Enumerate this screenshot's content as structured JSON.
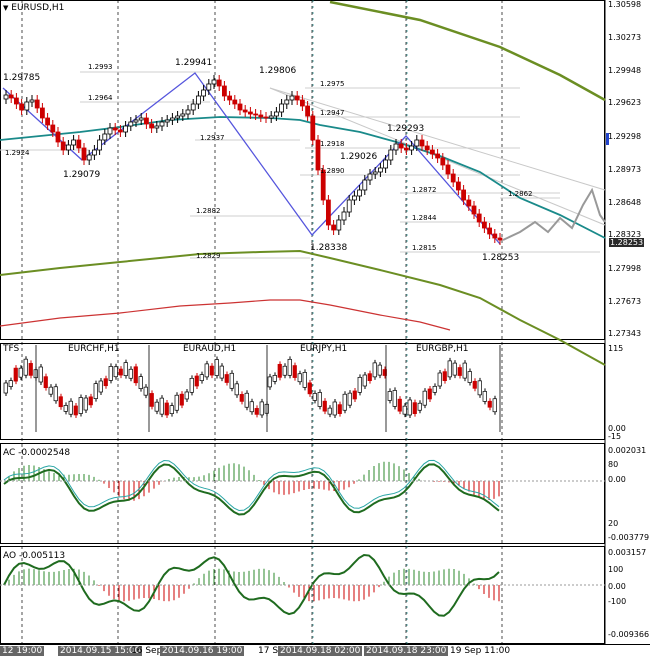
{
  "symbol": "EURUSD,H1",
  "current_price": "1.28253",
  "price_axis": [
    "1.30598",
    "1.30273",
    "1.29948",
    "1.29623",
    "1.29298",
    "1.28973",
    "1.28648",
    "1.28323",
    "1.27998",
    "1.27673",
    "1.27343"
  ],
  "pivot_labels": [
    "1.29785",
    "1.29941",
    "1.29806",
    "1.29079",
    "1.29293",
    "1.29026",
    "1.28338",
    "1.28253"
  ],
  "fib_labels": [
    "1.2993",
    "1.2964",
    "1.2924",
    "1.2937",
    "1.2975",
    "1.2947",
    "1.2918",
    "1.2890",
    "1.2882",
    "1.2829",
    "1.2872",
    "1.2844",
    "1.2815",
    "1.2862"
  ],
  "tfs": {
    "label": "TFS",
    "pairs": [
      "EURCHF,H1",
      "EURAUD,H1",
      "EURJPY,H1",
      "EURGBP,H1"
    ],
    "axis": [
      "115",
      "0.00",
      "-15"
    ]
  },
  "ac": {
    "label": "AC -0.0002548",
    "axis": [
      "0.002031",
      "80",
      "0.00",
      "20",
      "-0.003779"
    ]
  },
  "ao": {
    "label": "AO -0.005113",
    "axis": [
      "0.003157",
      "100",
      "0.00",
      "-100",
      "-0.009366"
    ]
  },
  "time_axis": [
    "12 19:00",
    "2014.09.15 15:00",
    "16 Sep",
    "2014.09.16 19:00",
    "17 Sep",
    "2014.09.18 02:00",
    "2014.09.18 23:00",
    "19 Sep 11:00"
  ],
  "colors": {
    "bull": "#000000",
    "bear": "#cc0000",
    "ma": "#1a8a8a",
    "envelope": "#6b8e23",
    "zigzag": "#5555dd",
    "ac_ao_line": "#1f6b1f",
    "price_tag": "#2a2a2a"
  }
}
